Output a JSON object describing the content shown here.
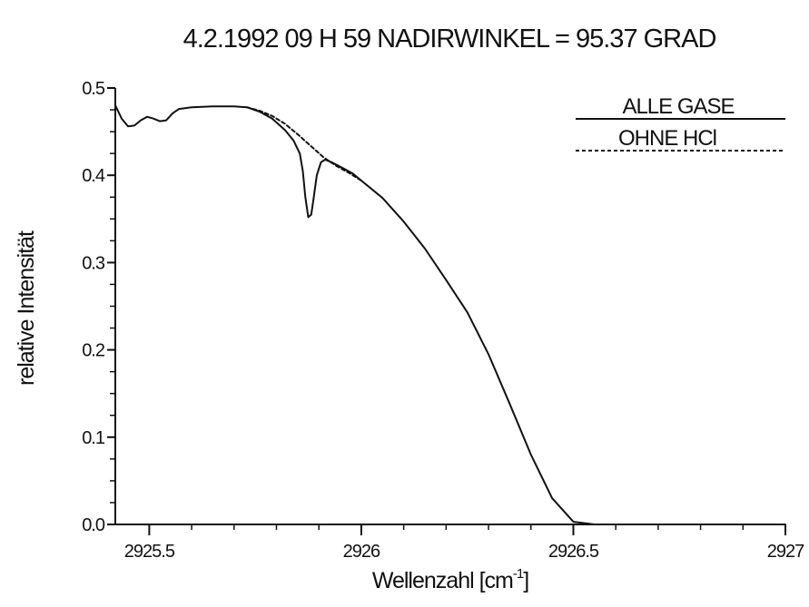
{
  "chart_data": {
    "type": "line",
    "title": "4.2.1992   09 H 59   NADIRWINKEL = 95.37 GRAD",
    "xlabel": "Wellenzahl [cm",
    "xlabel_sup": "-1",
    "xlabel_end": "]",
    "ylabel": "relative Intensität",
    "xlim": [
      2925.42,
      2927.0
    ],
    "ylim": [
      0.0,
      0.5
    ],
    "x_ticks": [
      {
        "value": 2925.5,
        "label": "2925.5"
      },
      {
        "value": 2926.0,
        "label": "2926"
      },
      {
        "value": 2926.5,
        "label": "2926.5"
      },
      {
        "value": 2927.0,
        "label": "2927"
      }
    ],
    "y_ticks": [
      {
        "value": 0.0,
        "label": "0.0"
      },
      {
        "value": 0.1,
        "label": "0.1"
      },
      {
        "value": 0.2,
        "label": "0.2"
      },
      {
        "value": 0.3,
        "label": "0.3"
      },
      {
        "value": 0.4,
        "label": "0.4"
      },
      {
        "value": 0.5,
        "label": "0.5"
      }
    ],
    "legend_position": "top-right",
    "grid": false,
    "series": [
      {
        "name": "ALLE GASE",
        "style": "solid",
        "color": "#111111",
        "points": [
          [
            2925.42,
            0.48
          ],
          [
            2925.435,
            0.465
          ],
          [
            2925.45,
            0.456
          ],
          [
            2925.465,
            0.457
          ],
          [
            2925.48,
            0.463
          ],
          [
            2925.495,
            0.467
          ],
          [
            2925.51,
            0.465
          ],
          [
            2925.525,
            0.462
          ],
          [
            2925.54,
            0.463
          ],
          [
            2925.555,
            0.471
          ],
          [
            2925.57,
            0.476
          ],
          [
            2925.6,
            0.478
          ],
          [
            2925.65,
            0.479
          ],
          [
            2925.7,
            0.479
          ],
          [
            2925.73,
            0.478
          ],
          [
            2925.76,
            0.473
          ],
          [
            2925.79,
            0.465
          ],
          [
            2925.82,
            0.452
          ],
          [
            2925.84,
            0.44
          ],
          [
            2925.855,
            0.425
          ],
          [
            2925.862,
            0.405
          ],
          [
            2925.868,
            0.375
          ],
          [
            2925.875,
            0.352
          ],
          [
            2925.882,
            0.355
          ],
          [
            2925.888,
            0.375
          ],
          [
            2925.895,
            0.4
          ],
          [
            2925.905,
            0.415
          ],
          [
            2925.915,
            0.418
          ],
          [
            2925.93,
            0.415
          ],
          [
            2925.95,
            0.41
          ],
          [
            2925.98,
            0.402
          ],
          [
            2926.0,
            0.394
          ],
          [
            2926.05,
            0.374
          ],
          [
            2926.1,
            0.347
          ],
          [
            2926.15,
            0.316
          ],
          [
            2926.2,
            0.28
          ],
          [
            2926.25,
            0.243
          ],
          [
            2926.3,
            0.195
          ],
          [
            2926.35,
            0.138
          ],
          [
            2926.4,
            0.08
          ],
          [
            2926.45,
            0.03
          ],
          [
            2926.5,
            0.003
          ],
          [
            2926.55,
            0.0
          ],
          [
            2926.6,
            0.0
          ],
          [
            2926.7,
            0.0
          ],
          [
            2926.8,
            0.0
          ],
          [
            2926.9,
            0.0
          ],
          [
            2927.0,
            0.0
          ]
        ]
      },
      {
        "name": "OHNE HCl",
        "style": "dashed",
        "color": "#111111",
        "points": [
          [
            2925.73,
            0.478
          ],
          [
            2925.76,
            0.474
          ],
          [
            2925.79,
            0.468
          ],
          [
            2925.82,
            0.459
          ],
          [
            2925.85,
            0.447
          ],
          [
            2925.88,
            0.434
          ],
          [
            2925.91,
            0.421
          ],
          [
            2925.94,
            0.411
          ],
          [
            2925.97,
            0.403
          ],
          [
            2926.0,
            0.394
          ]
        ]
      }
    ]
  }
}
